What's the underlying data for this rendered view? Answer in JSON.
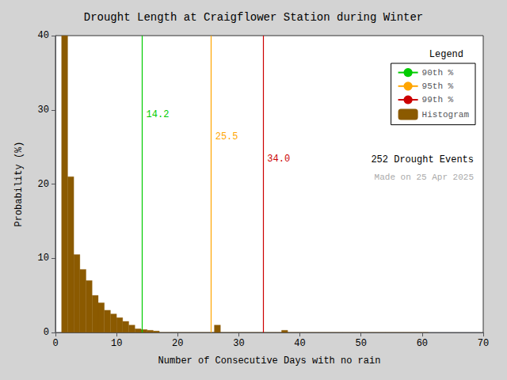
{
  "chart_data": {
    "type": "histogram",
    "title": "Drought Length at Craigflower Station during Winter",
    "xlabel": "Number of Consecutive Days with no rain",
    "ylabel": "Probability (%)",
    "name": "Histogram",
    "bins": [
      1,
      2,
      3,
      4,
      5,
      6,
      7,
      8,
      9,
      10,
      11,
      12,
      13,
      14,
      15,
      16,
      17,
      18,
      19,
      20,
      21,
      22,
      23,
      24,
      25,
      26,
      27,
      28,
      29,
      30,
      31,
      32,
      33,
      34,
      35,
      36,
      37,
      38,
      39,
      40,
      41,
      42,
      43,
      44,
      45,
      46,
      47,
      48,
      49,
      50,
      51,
      52,
      53,
      54,
      55,
      56,
      57,
      58,
      59,
      60,
      61
    ],
    "values": [
      40.0,
      21.0,
      10.5,
      8.5,
      7.0,
      5.0,
      4.0,
      3.0,
      2.5,
      2.0,
      1.5,
      1.0,
      0.5,
      0.4,
      0.3,
      0.2,
      0.0,
      0.0,
      0.0,
      0.0,
      0.0,
      0.0,
      0.0,
      0.0,
      0.0,
      1.0,
      0.0,
      0.0,
      0.0,
      0.0,
      0.0,
      0.0,
      0.0,
      0.0,
      0.0,
      0.0,
      0.3,
      0.0,
      0.0,
      0.0,
      0.0,
      0.0,
      0.0,
      0.0,
      0.0,
      0.0,
      0.0,
      0.0,
      0.0,
      0.0,
      0.0,
      0.0,
      0.0,
      0.0,
      0.0,
      0.0,
      0.0,
      0.0,
      0.0,
      0.0
    ],
    "color": "#8B5A00",
    "xlim": [
      0,
      70
    ],
    "xticks": [
      0,
      10,
      20,
      30,
      40,
      50,
      60,
      70
    ],
    "ylim": [
      0,
      40
    ],
    "yticks": [
      0,
      10,
      20,
      30,
      40
    ],
    "grid": false,
    "legend": "upper right",
    "legend_title": "Legend",
    "background_color": "#d3d3d3",
    "plot_bg_color": "#ffffff",
    "lines": [
      {
        "name": "90th %",
        "x": 14.2,
        "color": "#00CC00",
        "label": "14.2",
        "label_y": 30
      },
      {
        "name": "95th %",
        "x": 25.5,
        "color": "#FFA500",
        "label": "25.5",
        "label_y": 27
      },
      {
        "name": "99th %",
        "x": 34.0,
        "color": "#CC0000",
        "label": "34.0",
        "label_y": 24
      }
    ],
    "annotations": [
      {
        "text": "252 Drought Events",
        "color": "#000000"
      },
      {
        "text": "Made on 25 Apr 2025",
        "color": "#AAAAAA"
      }
    ]
  }
}
